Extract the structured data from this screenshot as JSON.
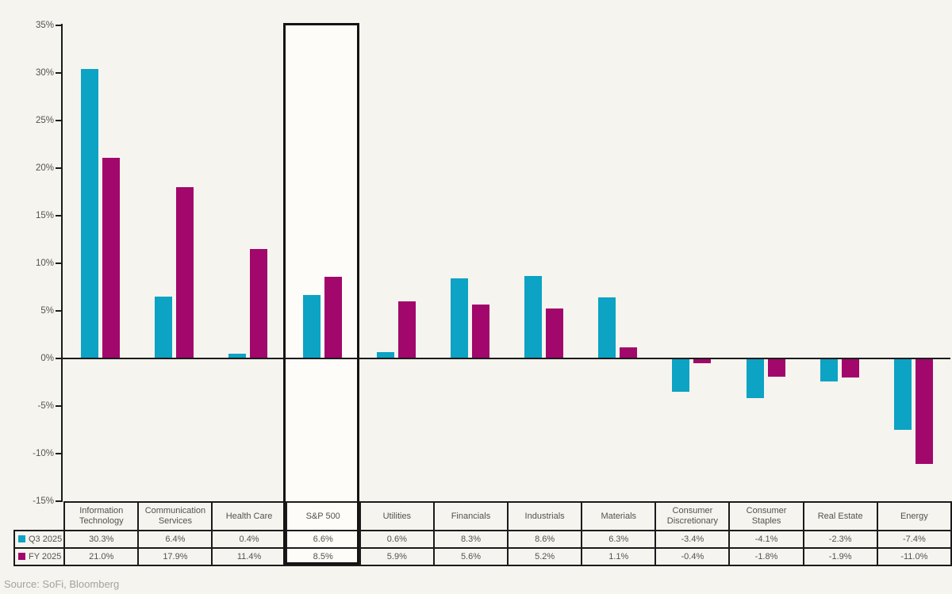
{
  "source_note": "Source: SoFi, Bloomberg",
  "colors": {
    "q3_teal": "#0CA3C4",
    "fy_magenta": "#A2076B",
    "background": "#F5F4EF",
    "highlight_backdrop": "#FDFCF8",
    "axis_black": "#1B1B1B",
    "label_gray": "#55534E",
    "source_gray": "#A5A29B"
  },
  "legend": [
    {
      "label": "Q3 2025",
      "color": "#0CA3C4"
    },
    {
      "label": "FY 2025",
      "color": "#A2076B"
    }
  ],
  "chart_data": {
    "type": "bar",
    "title": "",
    "categories": [
      "Information Technology",
      "Communication Services",
      "Health Care",
      "S&P 500",
      "Utilities",
      "Financials",
      "Industrials",
      "Materials",
      "Consumer Discretionary",
      "Consumer Staples",
      "Real Estate",
      "Energy"
    ],
    "series": [
      {
        "name": "Q3 2025",
        "color": "#0CA3C4",
        "values": [
          30.3,
          6.4,
          0.4,
          6.6,
          0.6,
          8.3,
          8.6,
          6.3,
          -3.4,
          -4.1,
          -2.3,
          -7.4
        ]
      },
      {
        "name": "FY 2025",
        "color": "#A2076B",
        "values": [
          21.0,
          17.9,
          11.4,
          8.5,
          5.9,
          5.6,
          5.2,
          1.1,
          -0.4,
          -1.8,
          -1.9,
          -11.0
        ]
      }
    ],
    "ylim": [
      -15,
      35
    ],
    "ytick_step": 5,
    "ytick_labels": [
      "35%",
      "30%",
      "25%",
      "20%",
      "15%",
      "10%",
      "5%",
      "0%",
      "-5%",
      "-10%",
      "-15%"
    ],
    "highlighted_category": "S&P 500",
    "legend_position": "table-left",
    "grid": false,
    "value_suffix": "%"
  }
}
